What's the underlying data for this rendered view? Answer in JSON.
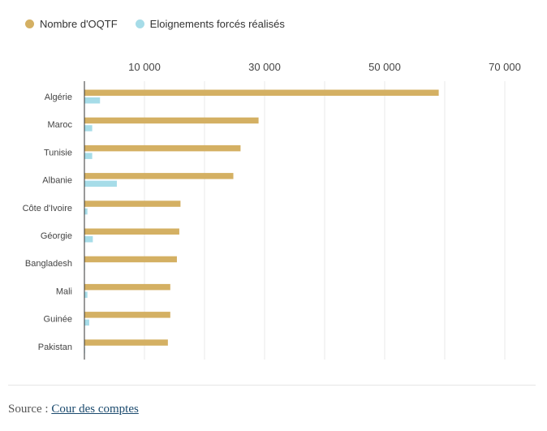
{
  "legend": {
    "series0_label": "Nombre d'OQTF",
    "series1_label": "Eloignements forcés réalisés"
  },
  "source": {
    "prefix": "Source : ",
    "link_text": "Cour des comptes"
  },
  "colors": {
    "series0": "#d4b063",
    "series1": "#a6dce8",
    "grid": "#e8e8e8",
    "axis": "#333333",
    "text": "#444444"
  },
  "chart_data": {
    "type": "bar",
    "orientation": "horizontal",
    "categories": [
      "Algérie",
      "Maroc",
      "Tunisie",
      "Albanie",
      "Côte d'Ivoire",
      "Géorgie",
      "Bangladesh",
      "Mali",
      "Guinée",
      "Pakistan"
    ],
    "series": [
      {
        "name": "Nombre d'OQTF",
        "values": [
          59000,
          29000,
          26000,
          24800,
          16000,
          15800,
          15400,
          14300,
          14300,
          13900
        ]
      },
      {
        "name": "Eloignements forcés réalisés",
        "values": [
          2600,
          1300,
          1300,
          5400,
          500,
          1400,
          100,
          500,
          800,
          100
        ]
      }
    ],
    "xlim": [
      0,
      74000
    ],
    "x_ticks": [
      10000,
      30000,
      50000,
      70000
    ],
    "x_tick_labels": [
      "10 000",
      "30 000",
      "50 000",
      "70 000"
    ],
    "grid_lines": [
      10000,
      20000,
      30000,
      40000,
      50000,
      60000,
      70000
    ],
    "legend_position": "top-left"
  }
}
